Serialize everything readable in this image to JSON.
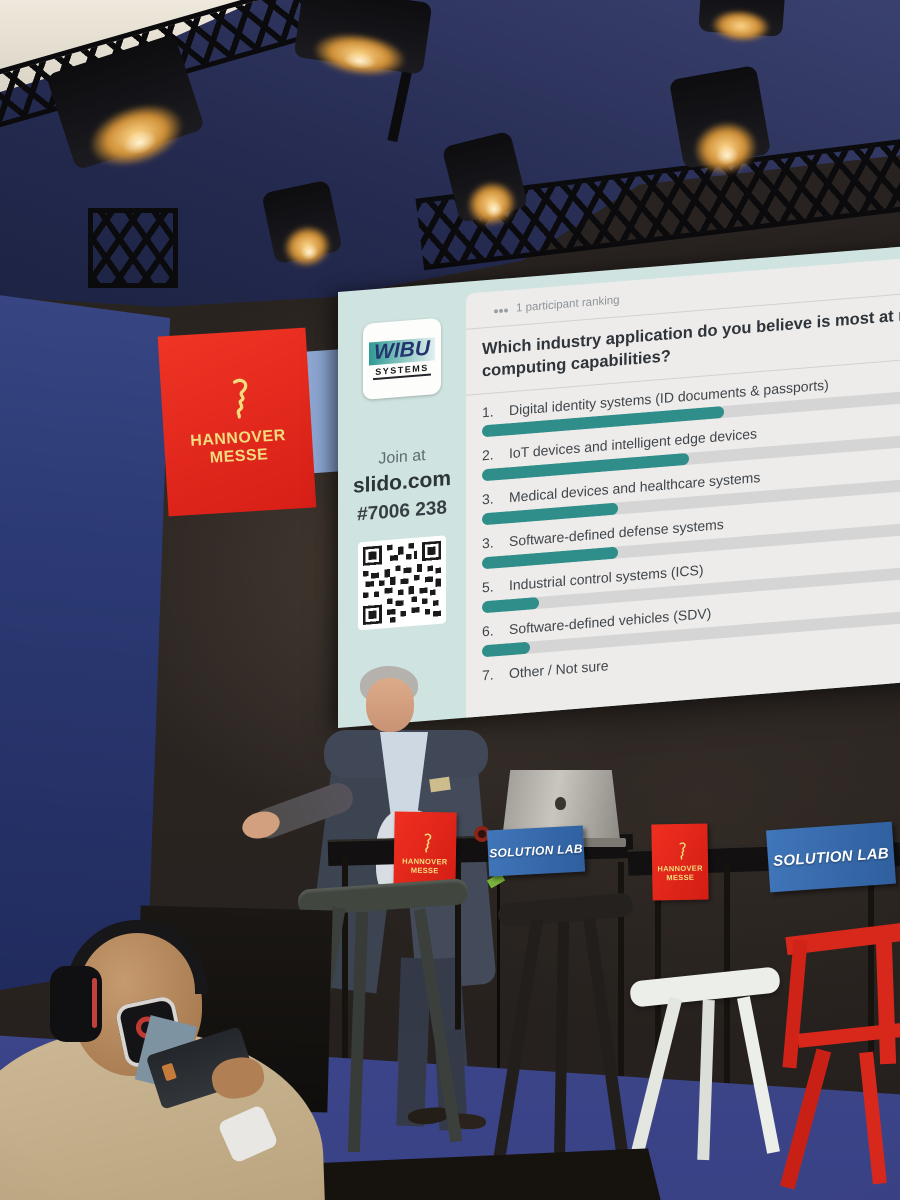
{
  "screen": {
    "sidebar": {
      "logo_top": "WIBU",
      "logo_bottom": "SYSTEMS",
      "join_prompt": "Join at",
      "join_url": "slido.com",
      "event_code": "#7006 238"
    },
    "slide": {
      "participants_note": "1 participant ranking",
      "question_line1": "Which industry application do you believe is most at risk from future",
      "question_line2": "computing capabilities?",
      "items": [
        {
          "rank": "1.",
          "label": "Digital identity systems (ID documents & passports)",
          "bar_pct": 55
        },
        {
          "rank": "2.",
          "label": "IoT devices and intelligent edge devices",
          "bar_pct": 47
        },
        {
          "rank": "3.",
          "label": "Medical devices and healthcare systems",
          "bar_pct": 31
        },
        {
          "rank": "3.",
          "label": "Software-defined defense systems",
          "bar_pct": 31
        },
        {
          "rank": "5.",
          "label": "Industrial control systems (ICS)",
          "bar_pct": 13
        },
        {
          "rank": "6.",
          "label": "Software-defined vehicles (SDV)",
          "bar_pct": 11
        },
        {
          "rank": "7.",
          "label": "Other / Not sure",
          "bar_pct": 0
        }
      ]
    }
  },
  "signs": {
    "hannover_line1": "HANNOVER",
    "hannover_line2": "MESSE",
    "solution_lab": "SOLUTION LAB"
  },
  "colors": {
    "bar_teal": "#2f8e89",
    "screen_mint": "#cfe4e0",
    "slide_bg": "#edecea",
    "hm_red": "#e5281c",
    "hm_yellow": "#f2dd7e",
    "lab_blue": "#3a6fb0",
    "carpet_blue": "#4a53a0"
  }
}
